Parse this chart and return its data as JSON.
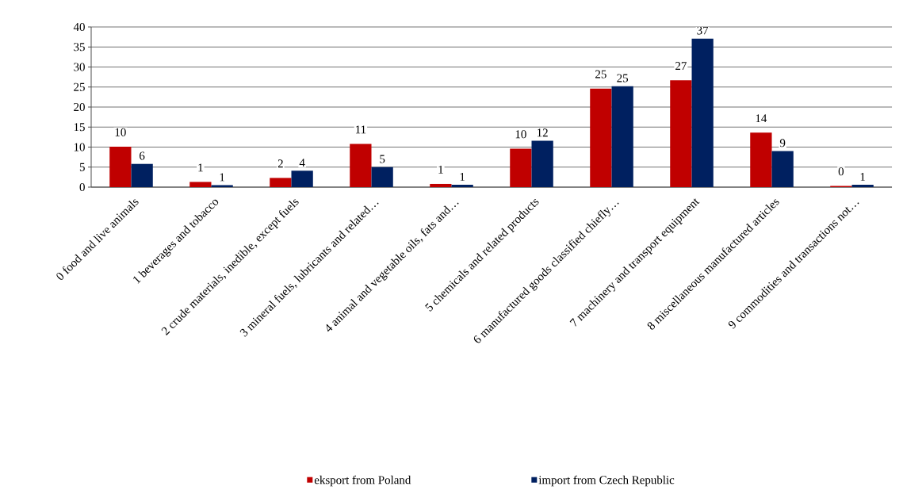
{
  "chart_data": {
    "type": "bar",
    "categories": [
      "0 food and live animals",
      "1 beverages and tobacco",
      "2 crude materials, inedible, except fuels",
      "3 mineral fuels, lubricants and related…",
      "4 animal and vegetable oils, fats and…",
      "5 chemicals and related  products",
      "6 manufactured goods classified  chiefly…",
      "7 machinery and transport equipment",
      "8 miscellaneous manufactured articles",
      "9 commodities and transactions not…"
    ],
    "series": [
      {
        "name": "eksport from Poland",
        "color": "#c00000",
        "values": [
          10.1,
          1.3,
          2.3,
          10.8,
          0.8,
          9.6,
          24.6,
          26.7,
          13.6,
          0.3
        ],
        "value_labels": [
          "10",
          "1",
          "2",
          "11",
          "1",
          "10",
          "25",
          "27",
          "14",
          "0"
        ]
      },
      {
        "name": "import from Czech Republic",
        "color": "#002060",
        "values": [
          5.8,
          0.5,
          4.1,
          5.0,
          0.6,
          11.6,
          25.2,
          37.1,
          9.0,
          0.6
        ],
        "value_labels": [
          "6",
          "1",
          "4",
          "5",
          "1",
          "12",
          "25",
          "37",
          "9",
          "1"
        ]
      }
    ],
    "ylim": [
      0,
      40
    ],
    "yticks": [
      0,
      5,
      10,
      15,
      20,
      25,
      30,
      35,
      40
    ],
    "grid": "y",
    "legend": "bottom"
  }
}
